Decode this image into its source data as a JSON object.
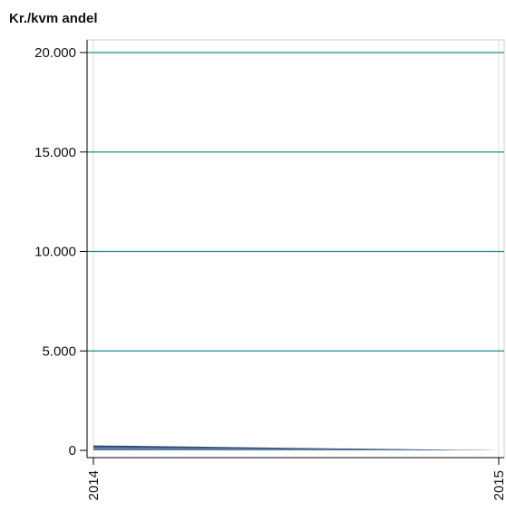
{
  "chart_data": {
    "type": "area",
    "title": "Kr./kvm andel",
    "xlabel": "",
    "ylabel": "",
    "x": [
      "2014",
      "2015"
    ],
    "ylim": [
      0,
      20000
    ],
    "y_ticks": [
      "0",
      "5.000",
      "10.000",
      "15.000",
      "20.000"
    ],
    "y_tick_values": [
      0,
      5000,
      10000,
      15000,
      20000
    ],
    "grid": true,
    "series": [
      {
        "values": [
          250,
          0
        ],
        "color": "#1f3d66"
      },
      {
        "values": [
          200,
          0
        ],
        "color": "#3b5d87"
      },
      {
        "values": [
          150,
          0
        ],
        "color": "#5f7fa6"
      }
    ],
    "colors": {
      "gridline": "#1f8a8a",
      "axis": "#000000",
      "frame": "#cccccc"
    }
  }
}
